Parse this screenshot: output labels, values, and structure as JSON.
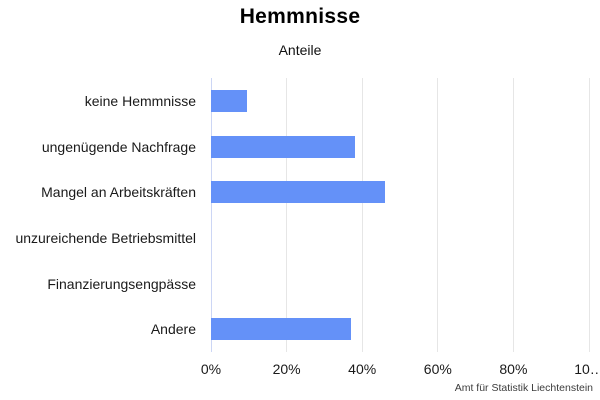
{
  "header": {
    "title": "Hemmnisse",
    "subtitle": "Anteile"
  },
  "footer": {
    "source": "Amt für Statistik Liechtenstein"
  },
  "chart_data": {
    "type": "bar",
    "orientation": "horizontal",
    "title": "Hemmnisse",
    "subtitle": "Anteile",
    "categories": [
      "keine Hemmnisse",
      "ungenügende Nachfrage",
      "Mangel an Arbeitskräften",
      "unzureichende Betriebsmittel",
      "Finanzierungsengpässe",
      "Andere"
    ],
    "values": [
      9.5,
      38,
      46,
      0,
      0,
      37
    ],
    "unit": "%",
    "xlabel": "",
    "ylabel": "",
    "xlim": [
      0,
      100
    ],
    "xticks": [
      {
        "value": 0,
        "label": "0%"
      },
      {
        "value": 20,
        "label": "20%"
      },
      {
        "value": 40,
        "label": "40%"
      },
      {
        "value": 60,
        "label": "60%"
      },
      {
        "value": 80,
        "label": "80%"
      },
      {
        "value": 100,
        "label": "10…"
      }
    ],
    "grid": true,
    "legend": "none",
    "bar_color": "#6491f8",
    "gridline_color": "#e6e6e6",
    "baseline_color": "#ccd6f5",
    "source": "Amt für Statistik Liechtenstein"
  }
}
